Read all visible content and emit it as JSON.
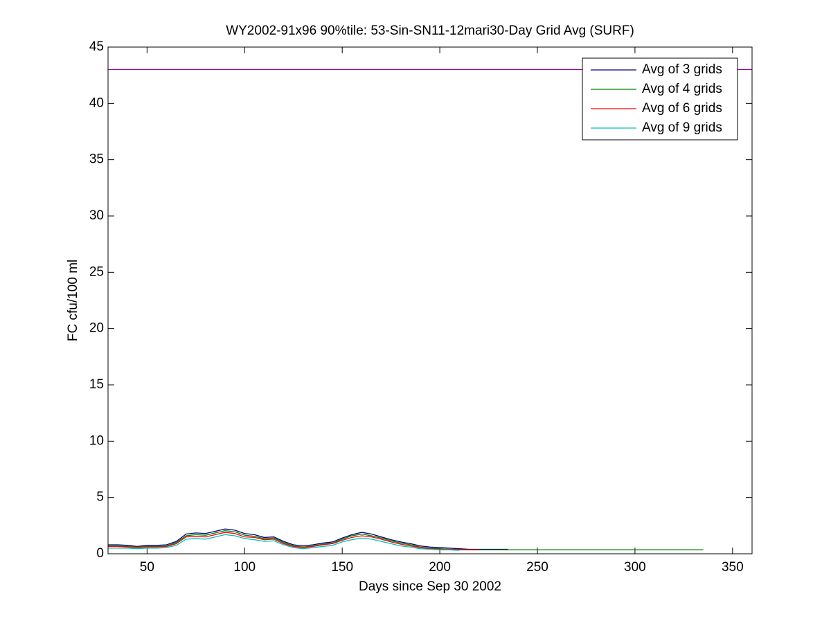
{
  "chart_data": {
    "type": "line",
    "title": "WY2002-91x96 90%tile: 53-Sin-SN11-12mari30-Day Grid Avg (SURF)",
    "xlabel": "Days since Sep 30 2002",
    "ylabel": "FC cfu/100 ml",
    "x": [
      30,
      35,
      40,
      45,
      50,
      55,
      60,
      65,
      70,
      75,
      80,
      85,
      90,
      95,
      100,
      105,
      110,
      115,
      120,
      125,
      130,
      135,
      140,
      145,
      150,
      155,
      160,
      165,
      170,
      175,
      180,
      185,
      190,
      195,
      200,
      205,
      210,
      215,
      220,
      225,
      230,
      235,
      240,
      245,
      250,
      255,
      260,
      265,
      270,
      275,
      280,
      285,
      290,
      295,
      300,
      305,
      310,
      315,
      320,
      325,
      330,
      335
    ],
    "series": [
      {
        "name": "Avg of 3 grids",
        "color": "#00007f",
        "values": [
          0.8,
          0.8,
          0.75,
          0.65,
          0.75,
          0.75,
          0.8,
          1.1,
          1.75,
          1.85,
          1.8,
          2.0,
          2.2,
          2.1,
          1.8,
          1.7,
          1.45,
          1.5,
          1.1,
          0.8,
          0.7,
          0.8,
          0.95,
          1.05,
          1.4,
          1.7,
          1.9,
          1.75,
          1.5,
          1.25,
          1.05,
          0.9,
          0.7,
          0.6,
          0.55,
          0.5,
          0.45,
          0.4,
          0.4,
          0.4,
          0.4,
          0.4,
          null,
          null,
          null,
          null,
          null,
          null,
          null,
          null,
          null,
          null,
          null,
          null,
          null,
          null,
          null,
          null,
          null,
          null,
          null,
          null
        ]
      },
      {
        "name": "Avg of 4 grids",
        "color": "#007f00",
        "values": [
          0.7,
          0.7,
          0.65,
          0.6,
          0.65,
          0.65,
          0.7,
          1.0,
          1.6,
          1.7,
          1.65,
          1.85,
          2.05,
          1.95,
          1.65,
          1.55,
          1.35,
          1.4,
          1.0,
          0.7,
          0.6,
          0.7,
          0.85,
          0.95,
          1.3,
          1.6,
          1.75,
          1.6,
          1.4,
          1.15,
          0.95,
          0.8,
          0.6,
          0.5,
          0.45,
          0.4,
          0.4,
          0.35,
          0.35,
          0.35,
          0.35,
          0.35,
          0.35,
          0.35,
          0.35,
          0.35,
          0.35,
          0.35,
          0.35,
          0.35,
          0.35,
          0.35,
          0.35,
          0.35,
          0.35,
          0.35,
          0.35,
          0.35,
          0.35,
          0.35,
          0.35,
          0.35
        ]
      },
      {
        "name": "Avg of 6 grids",
        "color": "#ff0000",
        "values": [
          0.65,
          0.65,
          0.6,
          0.55,
          0.6,
          0.6,
          0.65,
          0.9,
          1.5,
          1.55,
          1.5,
          1.7,
          1.9,
          1.8,
          1.5,
          1.45,
          1.25,
          1.3,
          0.9,
          0.65,
          0.55,
          0.65,
          0.8,
          0.9,
          1.2,
          1.45,
          1.6,
          1.5,
          1.3,
          1.05,
          0.85,
          0.7,
          0.55,
          0.45,
          0.4,
          0.4,
          0.35,
          0.35,
          0.35,
          null,
          null,
          null,
          null,
          null,
          null,
          null,
          null,
          null,
          null,
          null,
          null,
          null,
          null,
          null,
          null,
          null,
          null,
          null,
          null,
          null,
          null,
          null
        ]
      },
      {
        "name": "Avg of 9 grids",
        "color": "#00bfbf",
        "values": [
          0.5,
          0.5,
          0.5,
          0.45,
          0.5,
          0.5,
          0.55,
          0.75,
          1.3,
          1.35,
          1.3,
          1.5,
          1.7,
          1.6,
          1.35,
          1.25,
          1.1,
          1.15,
          0.8,
          0.55,
          0.45,
          0.55,
          0.65,
          0.75,
          1.05,
          1.25,
          1.4,
          1.3,
          1.1,
          0.9,
          0.7,
          0.6,
          0.45,
          0.4,
          0.35,
          0.35,
          0.3,
          null,
          null,
          null,
          null,
          null,
          null,
          null,
          null,
          null,
          null,
          null,
          null,
          null,
          null,
          null,
          null,
          null,
          null,
          null,
          null,
          null,
          null,
          null,
          null,
          null
        ]
      }
    ],
    "reference_line": {
      "value": 43,
      "color": "#9400a8"
    },
    "xlim": [
      30,
      360
    ],
    "ylim": [
      0,
      45
    ],
    "xticks": [
      50,
      100,
      150,
      200,
      250,
      300,
      350
    ],
    "yticks": [
      0,
      5,
      10,
      15,
      20,
      25,
      30,
      35,
      40,
      45
    ],
    "legend": "upper right"
  }
}
